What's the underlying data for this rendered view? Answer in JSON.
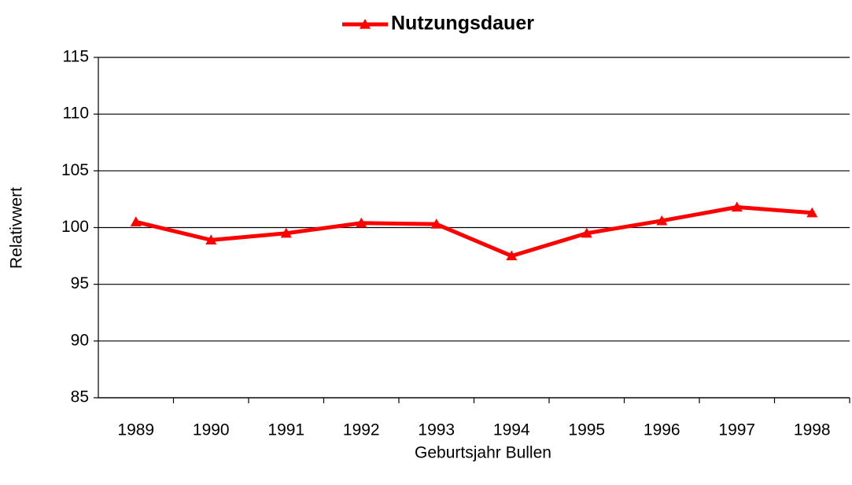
{
  "chart_data": {
    "type": "line",
    "x_label": "Geburtsjahr Bullen",
    "y_label": "Relativwert",
    "categories": [
      "1989",
      "1990",
      "1991",
      "1992",
      "1993",
      "1994",
      "1995",
      "1996",
      "1997",
      "1998"
    ],
    "series": [
      {
        "name": "Nutzungsdauer",
        "color": "#ff0000",
        "values": [
          100.5,
          98.9,
          99.5,
          100.4,
          100.3,
          97.5,
          99.5,
          100.6,
          101.8,
          101.3
        ]
      }
    ],
    "ylim": [
      85,
      115
    ],
    "yticks": [
      85,
      90,
      95,
      100,
      105,
      110,
      115
    ],
    "grid": true,
    "legend": "top"
  }
}
